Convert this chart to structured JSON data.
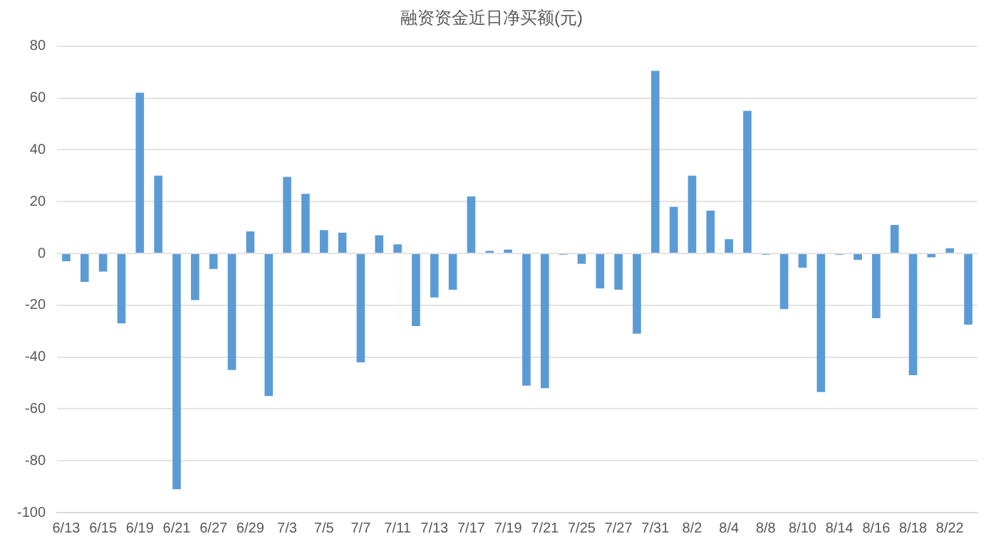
{
  "chart_data": {
    "type": "bar",
    "title": "融资资金近日净买额(元)",
    "categories": [
      "6/13",
      null,
      "6/15",
      null,
      "6/19",
      null,
      "6/21",
      null,
      "6/27",
      null,
      "6/29",
      null,
      "7/3",
      null,
      "7/5",
      null,
      "7/7",
      null,
      "7/11",
      null,
      "7/13",
      null,
      "7/17",
      null,
      "7/19",
      null,
      "7/21",
      null,
      "7/25",
      null,
      "7/27",
      null,
      "7/31",
      null,
      "8/2",
      null,
      "8/4",
      null,
      "8/8",
      null,
      "8/10",
      null,
      "8/14",
      null,
      "8/16",
      null,
      "8/18",
      null,
      "8/22",
      null
    ],
    "values": [
      -3,
      -11,
      -7,
      -27,
      62,
      30,
      -91,
      -18,
      -6,
      -45,
      8.5,
      -55,
      29.5,
      23,
      9,
      8,
      -42,
      7,
      3.5,
      -28,
      -17,
      -14,
      22,
      1,
      1.5,
      -51,
      -52,
      -0.5,
      -4,
      -13.5,
      -14,
      -31,
      70.5,
      18,
      30,
      16.5,
      5.5,
      55,
      -0.5,
      -21.5,
      -5.5,
      -53.5,
      -0.5,
      -2.5,
      -25,
      11,
      -47,
      -1.5,
      2,
      -27.5
    ],
    "color": "#5b9bd5",
    "ylim": [
      -100,
      80
    ],
    "yticks": [
      -100,
      -80,
      -60,
      -40,
      -20,
      0,
      20,
      40,
      60,
      80
    ],
    "grid": "y",
    "legend": false
  }
}
